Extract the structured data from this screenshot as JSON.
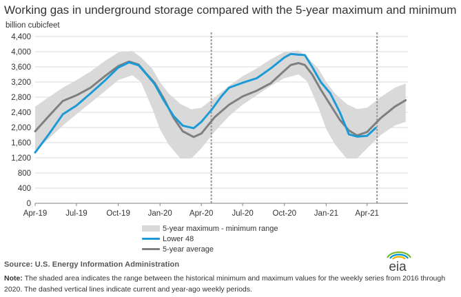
{
  "title": "Working gas in underground storage compared with the 5-year maximum and minimum",
  "units_label": "billion cubicfeet",
  "legend": {
    "band": "5-year maximum - minimum range",
    "lower48": "Lower 48",
    "average": "5-year average"
  },
  "source": "Source:  U.S. Energy Information Administration",
  "note_label": "Note:",
  "note_text": " The shaded area indicates the range between the historical minimum and maximum values for the weekly series from 2016 through 2020. The dashed vertical lines indicate current and year-ago weekly periods.",
  "logo_text": "eia",
  "colors": {
    "band": "#d9d9d9",
    "lower48": "#1a9ad6",
    "average": "#7f7f7f",
    "grid": "#d9d9d9",
    "dashed": "#9a9a9a",
    "logo_arc_green": "#76b82a",
    "logo_arc_blue": "#0096d6",
    "logo_arc_yellow": "#f2b200"
  },
  "chart_data": {
    "type": "line",
    "title": "Working gas in underground storage compared with the 5-year maximum and minimum",
    "ylabel": "billion cubicfeet",
    "ylim": [
      0,
      4400
    ],
    "yticks": [
      0,
      400,
      800,
      1200,
      1600,
      2000,
      2400,
      2800,
      3200,
      3600,
      4000,
      4400
    ],
    "ytick_labels": [
      "0",
      "400",
      "800",
      "1,200",
      "1,600",
      "2,000",
      "2,400",
      "2,800",
      "3,200",
      "3,600",
      "4,000",
      "4,400"
    ],
    "xlim": [
      "2019-04-01",
      "2021-06-30"
    ],
    "xticks": [
      "2019-04-01",
      "2019-07-01",
      "2019-10-01",
      "2020-01-01",
      "2020-04-01",
      "2020-07-01",
      "2020-10-01",
      "2021-01-01",
      "2021-04-01"
    ],
    "xtick_labels": [
      "Apr-19",
      "Jul-19",
      "Oct-19",
      "Jan-20",
      "Apr-20",
      "Jul-20",
      "Oct-20",
      "Jan-21",
      "Apr-21"
    ],
    "grid": "horizontal",
    "dashed_lines": [
      "2020-04-23",
      "2021-04-23"
    ],
    "band": {
      "name": "5-year maximum - minimum range",
      "x": [
        "2019-04-01",
        "2019-05-01",
        "2019-06-01",
        "2019-07-01",
        "2019-08-01",
        "2019-09-01",
        "2019-10-01",
        "2019-11-01",
        "2019-11-20",
        "2019-12-15",
        "2020-01-01",
        "2020-01-20",
        "2020-02-15",
        "2020-03-10",
        "2020-04-01",
        "2020-05-01",
        "2020-06-01",
        "2020-07-01",
        "2020-08-01",
        "2020-09-01",
        "2020-10-01",
        "2020-11-01",
        "2020-11-20",
        "2020-12-15",
        "2021-01-01",
        "2021-01-20",
        "2021-02-15",
        "2021-03-10",
        "2021-04-01",
        "2021-05-01",
        "2021-06-01",
        "2021-06-25"
      ],
      "max": [
        2550,
        2800,
        3050,
        3250,
        3480,
        3750,
        3980,
        4020,
        3850,
        3550,
        3200,
        2900,
        2620,
        2480,
        2520,
        2800,
        3100,
        3350,
        3560,
        3800,
        3990,
        4030,
        3860,
        3550,
        3200,
        2900,
        2620,
        2490,
        2520,
        2800,
        3050,
        3160
      ],
      "min": [
        1400,
        1700,
        2050,
        2350,
        2650,
        2950,
        3250,
        3380,
        3200,
        2500,
        1950,
        1550,
        1180,
        1180,
        1450,
        1900,
        2300,
        2600,
        2850,
        3100,
        3300,
        3400,
        3220,
        2520,
        1960,
        1560,
        1180,
        1180,
        1450,
        1800,
        2050,
        2150
      ]
    },
    "series": [
      {
        "name": "Lower 48",
        "x": [
          "2019-04-01",
          "2019-05-01",
          "2019-06-01",
          "2019-07-01",
          "2019-08-01",
          "2019-09-01",
          "2019-10-01",
          "2019-10-25",
          "2019-11-15",
          "2019-12-01",
          "2019-12-20",
          "2020-01-10",
          "2020-01-31",
          "2020-02-20",
          "2020-03-15",
          "2020-04-01",
          "2020-04-23",
          "2020-05-15",
          "2020-06-01",
          "2020-07-01",
          "2020-08-01",
          "2020-09-01",
          "2020-10-01",
          "2020-10-15",
          "2020-11-01",
          "2020-11-15",
          "2020-12-01",
          "2020-12-20",
          "2021-01-10",
          "2021-01-31",
          "2021-02-20",
          "2021-03-10",
          "2021-04-01",
          "2021-04-20"
        ],
        "y": [
          1340,
          1820,
          2350,
          2580,
          2900,
          3230,
          3580,
          3720,
          3640,
          3420,
          3150,
          2700,
          2300,
          2050,
          1980,
          2150,
          2460,
          2820,
          3050,
          3180,
          3300,
          3560,
          3850,
          3940,
          3920,
          3910,
          3600,
          3200,
          2900,
          2400,
          1820,
          1760,
          1780,
          1990
        ]
      },
      {
        "name": "5-year average",
        "x": [
          "2019-04-01",
          "2019-05-01",
          "2019-06-01",
          "2019-07-01",
          "2019-08-01",
          "2019-09-01",
          "2019-10-01",
          "2019-10-25",
          "2019-11-15",
          "2019-12-01",
          "2019-12-20",
          "2020-01-10",
          "2020-01-31",
          "2020-02-20",
          "2020-03-15",
          "2020-04-01",
          "2020-05-01",
          "2020-06-01",
          "2020-07-01",
          "2020-08-01",
          "2020-09-01",
          "2020-10-01",
          "2020-10-15",
          "2020-11-01",
          "2020-11-15",
          "2020-12-01",
          "2020-12-20",
          "2021-01-10",
          "2021-01-31",
          "2021-02-20",
          "2021-03-10",
          "2021-04-01",
          "2021-05-01",
          "2021-06-01",
          "2021-06-25"
        ],
        "y": [
          1900,
          2300,
          2700,
          2850,
          3050,
          3350,
          3620,
          3740,
          3660,
          3430,
          3180,
          2750,
          2250,
          1900,
          1750,
          1840,
          2280,
          2600,
          2820,
          2970,
          3170,
          3500,
          3650,
          3700,
          3650,
          3400,
          3000,
          2600,
          2200,
          1920,
          1790,
          1880,
          2250,
          2550,
          2720
        ]
      }
    ]
  }
}
